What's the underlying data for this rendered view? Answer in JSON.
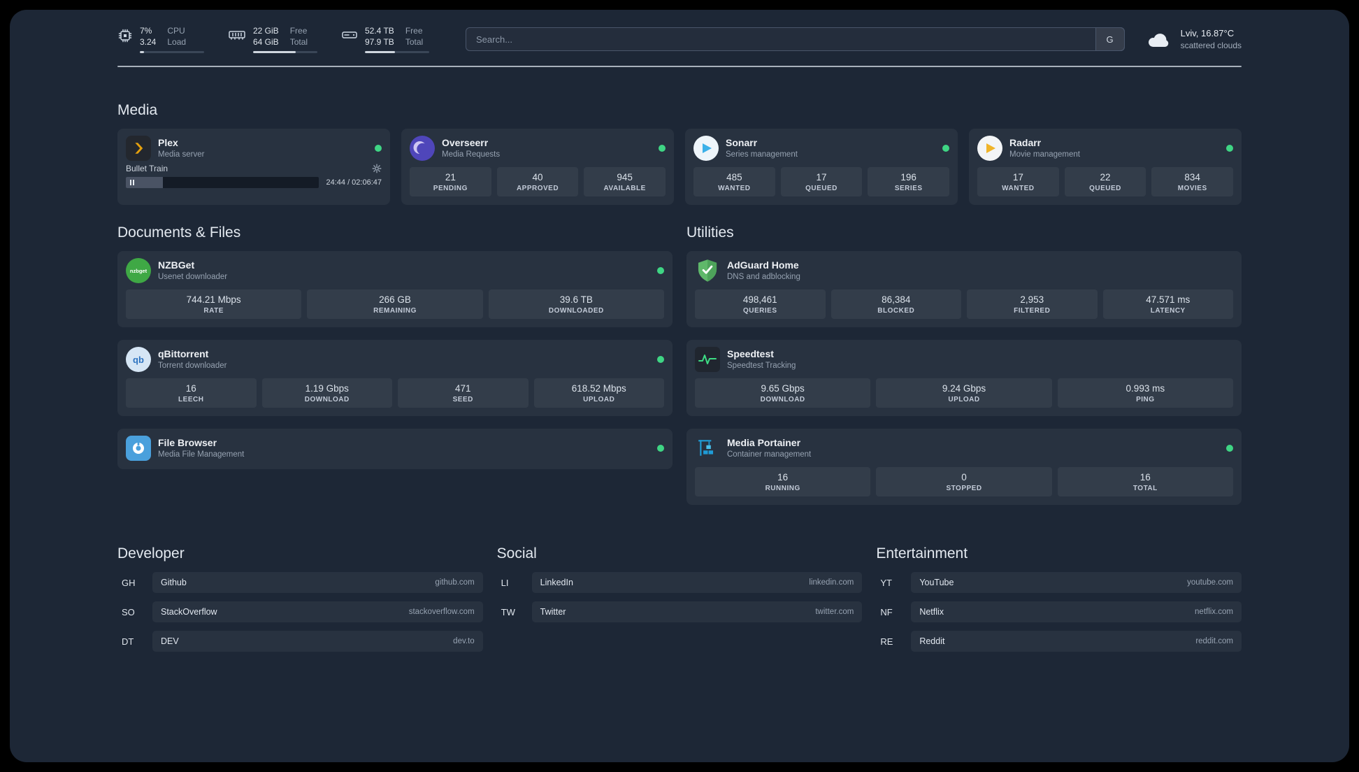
{
  "topbar": {
    "cpu": {
      "percent": "7%",
      "load": "3.24",
      "label_top": "CPU",
      "label_bottom": "Load",
      "progress": 7
    },
    "ram": {
      "free": "22 GiB",
      "total": "64 GiB",
      "label_top": "Free",
      "label_bottom": "Total",
      "progress": 66
    },
    "disk": {
      "free": "52.4 TB",
      "total": "97.9 TB",
      "label_top": "Free",
      "label_bottom": "Total",
      "progress": 47
    },
    "search": {
      "placeholder": "Search...",
      "button_label": "G"
    },
    "weather": {
      "location": "Lviv, 16.87°C",
      "condition": "scattered clouds"
    }
  },
  "groups": {
    "media": {
      "title": "Media",
      "services": [
        {
          "name": "Plex",
          "description": "Media server",
          "player": {
            "title": "Bullet Train",
            "time": "24:44 / 02:06:47",
            "progress": 19
          }
        },
        {
          "name": "Overseerr",
          "description": "Media Requests",
          "stats": [
            {
              "value": "21",
              "label": "PENDING"
            },
            {
              "value": "40",
              "label": "APPROVED"
            },
            {
              "value": "945",
              "label": "AVAILABLE"
            }
          ]
        },
        {
          "name": "Sonarr",
          "description": "Series management",
          "stats": [
            {
              "value": "485",
              "label": "WANTED"
            },
            {
              "value": "17",
              "label": "QUEUED"
            },
            {
              "value": "196",
              "label": "SERIES"
            }
          ]
        },
        {
          "name": "Radarr",
          "description": "Movie management",
          "stats": [
            {
              "value": "17",
              "label": "WANTED"
            },
            {
              "value": "22",
              "label": "QUEUED"
            },
            {
              "value": "834",
              "label": "MOVIES"
            }
          ]
        }
      ]
    },
    "documents": {
      "title": "Documents & Files",
      "services": [
        {
          "name": "NZBGet",
          "description": "Usenet downloader",
          "icon_text": "nzbget",
          "stats": [
            {
              "value": "744.21 Mbps",
              "label": "RATE"
            },
            {
              "value": "266 GB",
              "label": "REMAINING"
            },
            {
              "value": "39.6 TB",
              "label": "DOWNLOADED"
            }
          ]
        },
        {
          "name": "qBittorrent",
          "description": "Torrent downloader",
          "icon_text": "qb",
          "stats": [
            {
              "value": "16",
              "label": "LEECH"
            },
            {
              "value": "1.19 Gbps",
              "label": "DOWNLOAD"
            },
            {
              "value": "471",
              "label": "SEED"
            },
            {
              "value": "618.52 Mbps",
              "label": "UPLOAD"
            }
          ]
        },
        {
          "name": "File Browser",
          "description": "Media File Management",
          "stats": []
        }
      ]
    },
    "utilities": {
      "title": "Utilities",
      "services": [
        {
          "name": "AdGuard Home",
          "description": "DNS and adblocking",
          "stats": [
            {
              "value": "498,461",
              "label": "QUERIES"
            },
            {
              "value": "86,384",
              "label": "BLOCKED"
            },
            {
              "value": "2,953",
              "label": "FILTERED"
            },
            {
              "value": "47.571 ms",
              "label": "LATENCY"
            }
          ]
        },
        {
          "name": "Speedtest",
          "description": "Speedtest Tracking",
          "stats": [
            {
              "value": "9.65 Gbps",
              "label": "DOWNLOAD"
            },
            {
              "value": "9.24 Gbps",
              "label": "UPLOAD"
            },
            {
              "value": "0.993 ms",
              "label": "PING"
            }
          ]
        },
        {
          "name": "Media Portainer",
          "description": "Container management",
          "stats": [
            {
              "value": "16",
              "label": "RUNNING"
            },
            {
              "value": "0",
              "label": "STOPPED"
            },
            {
              "value": "16",
              "label": "TOTAL"
            }
          ]
        }
      ]
    }
  },
  "bookmarks": [
    {
      "title": "Developer",
      "items": [
        {
          "abbr": "GH",
          "name": "Github",
          "domain": "github.com"
        },
        {
          "abbr": "SO",
          "name": "StackOverflow",
          "domain": "stackoverflow.com"
        },
        {
          "abbr": "DT",
          "name": "DEV",
          "domain": "dev.to"
        }
      ]
    },
    {
      "title": "Social",
      "items": [
        {
          "abbr": "LI",
          "name": "LinkedIn",
          "domain": "linkedin.com"
        },
        {
          "abbr": "TW",
          "name": "Twitter",
          "domain": "twitter.com"
        }
      ]
    },
    {
      "title": "Entertainment",
      "items": [
        {
          "abbr": "YT",
          "name": "YouTube",
          "domain": "youtube.com"
        },
        {
          "abbr": "NF",
          "name": "Netflix",
          "domain": "netflix.com"
        },
        {
          "abbr": "RE",
          "name": "Reddit",
          "domain": "reddit.com"
        }
      ]
    }
  ],
  "colors": {
    "status_online": "#3fd584",
    "plex": "#e5a00d",
    "overseerr": "#4f46ba",
    "sonarr": "#3bb0e8",
    "radarr": "#f0b429",
    "nzbget": "#3fa845",
    "qbittorrent": "#2f74c0",
    "filebrowser": "#4aa0dc",
    "adguard": "#5fb86a",
    "speedtest": "#3ddc84",
    "portainer": "#1f9cd7"
  }
}
